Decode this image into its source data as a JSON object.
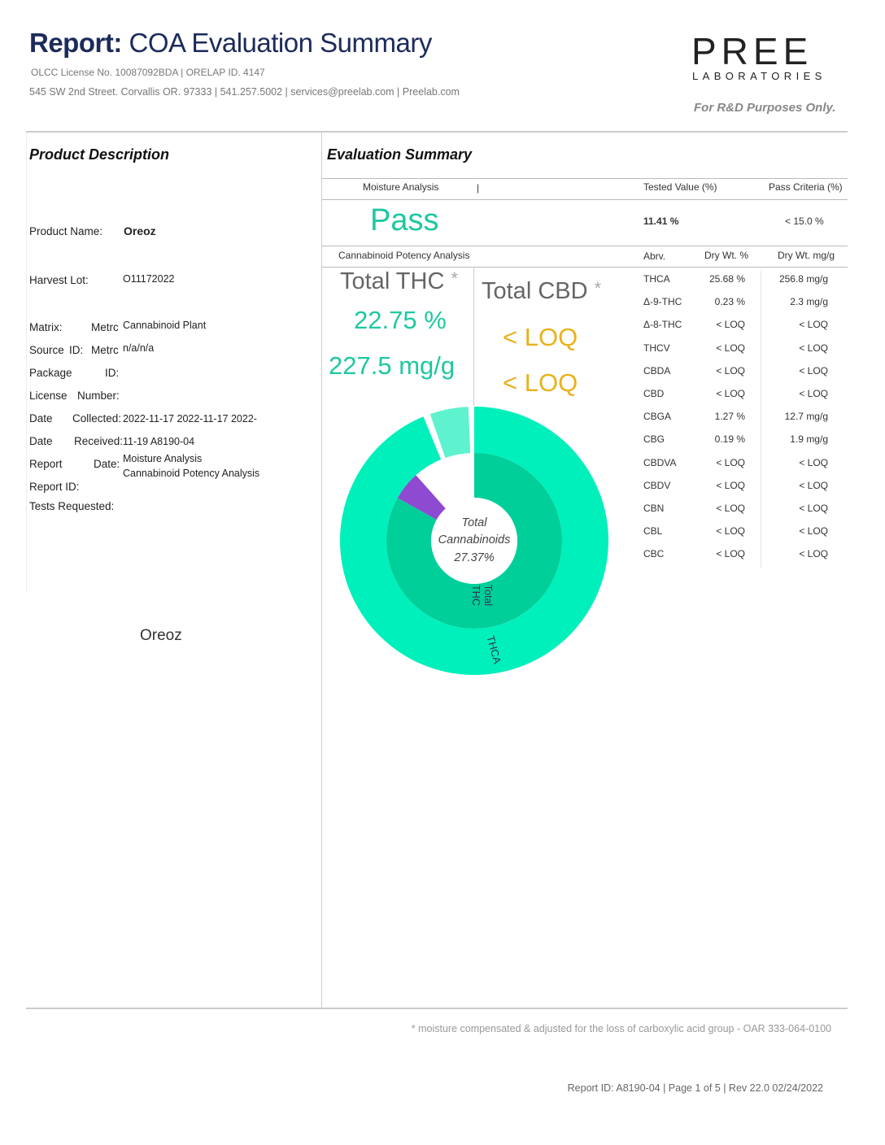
{
  "header": {
    "title_bold": "Report:",
    "title_rest": "COA Evaluation Summary",
    "license_line": "OLCC License No. 10087092BDA | ORELAP ID. 4147",
    "address_line": "545 SW 2nd Street. Corvallis OR. 97333 | 541.257.5002 | services@preelab.com | Preelab.com",
    "logo_word": "PREE",
    "logo_sub": "LABORATORIES",
    "purpose": "For R&D Purposes Only."
  },
  "product": {
    "section_title": "Product Description",
    "name_label": "Product Name:",
    "name_value": "Oreoz",
    "harvest_label": "Harvest Lot:",
    "harvest_value": "O11172022",
    "labels": [
      "Matrix:",
      "Metrc",
      "Source",
      "ID:",
      "Metrc",
      "Package",
      "ID:",
      "License",
      "Number:",
      "Date",
      "Collected:",
      "Date",
      "Received:",
      "Report",
      "Date:",
      "Report ID:",
      "Tests Requested:"
    ],
    "matrix_value": "Cannabinoid  Plant",
    "source_value": "n/a/n/a",
    "dates_line1": "2022-11-17   2022-11-17   2022-",
    "dates_line2": "11-19 A8190-04",
    "tests_line1": "Moisture Analysis",
    "tests_line2": "Cannabinoid Potency Analysis",
    "image_caption": "Oreoz"
  },
  "evaluation": {
    "section_title": "Evaluation Summary",
    "moisture_header": "Moisture Analysis",
    "moisture_sep": "|",
    "tested_header": "Tested Value (%)",
    "criteria_header": "Pass Criteria (%)",
    "result": "Pass",
    "tested_value": "11.41 %",
    "criteria_value": "< 15.0 %",
    "potency_header": "Cannabinoid Potency Analysis",
    "abrv_header": "Abrv.",
    "drywt_pct_header": "Dry Wt. %",
    "drywt_mg_header": "Dry Wt. mg/g",
    "total_thc_label": "Total THC",
    "total_thc_pct": "22.75 %",
    "total_thc_mg": "227.5 mg/g",
    "total_cbd_label": "Total CBD",
    "total_cbd_pct": "< LOQ",
    "total_cbd_mg": "< LOQ",
    "star": "*",
    "rows": [
      {
        "abrv": "THCA",
        "pct": "25.68 %",
        "mg": "256.8 mg/g"
      },
      {
        "abrv": "Δ-9-THC",
        "pct": "0.23 %",
        "mg": "2.3 mg/g"
      },
      {
        "abrv": "Δ-8-THC",
        "pct": "< LOQ",
        "mg": "< LOQ"
      },
      {
        "abrv": "THCV",
        "pct": "< LOQ",
        "mg": "< LOQ"
      },
      {
        "abrv": "CBDA",
        "pct": "< LOQ",
        "mg": "< LOQ"
      },
      {
        "abrv": "CBD",
        "pct": "< LOQ",
        "mg": "< LOQ"
      },
      {
        "abrv": "CBGA",
        "pct": "1.27 %",
        "mg": "12.7 mg/g"
      },
      {
        "abrv": "CBG",
        "pct": "0.19 %",
        "mg": "1.9 mg/g"
      },
      {
        "abrv": "CBDVA",
        "pct": "< LOQ",
        "mg": "< LOQ"
      },
      {
        "abrv": "CBDV",
        "pct": "< LOQ",
        "mg": "< LOQ"
      },
      {
        "abrv": "CBN",
        "pct": "< LOQ",
        "mg": "< LOQ"
      },
      {
        "abrv": "CBL",
        "pct": "< LOQ",
        "mg": "< LOQ"
      },
      {
        "abrv": "CBC",
        "pct": "< LOQ",
        "mg": "< LOQ"
      }
    ]
  },
  "chart_data": {
    "type": "pie",
    "title": "",
    "center_label_line1": "Total",
    "center_label_line2": "Cannabinoids",
    "center_value": "27.37%",
    "outer_ring": [
      {
        "name": "THCA",
        "value": 25.68,
        "color": "#00f0bb"
      },
      {
        "name": "",
        "value": 0.23,
        "color": "#ffffff"
      },
      {
        "name": "",
        "value": 1.27,
        "color": "#5ff2cf"
      },
      {
        "name": "",
        "value": 0.19,
        "color": "#ffffff"
      }
    ],
    "inner_ring": [
      {
        "name": "Total THC",
        "value": 22.75,
        "color": "#00cf99"
      },
      {
        "name": "",
        "value": 1.46,
        "color": "#8e4ad1"
      }
    ],
    "ring_max": 27.37
  },
  "footer": {
    "footnote": "* moisture compensated & adjusted for the loss of carboxylic acid group - OAR 333-064-0100",
    "page_info": "Report ID: A8190-04 |  Page 1 of 5 |   Rev 22.0  02/24/2022"
  },
  "colors": {
    "navy": "#1c2b5a",
    "teal": "#1ec8a0",
    "gold": "#e9b21a"
  }
}
